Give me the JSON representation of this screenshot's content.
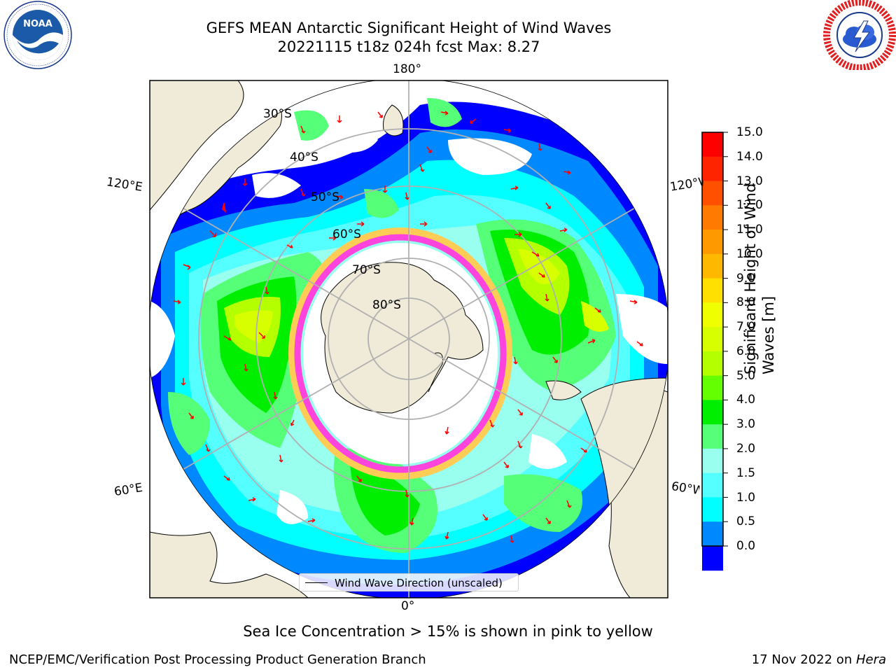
{
  "title": {
    "line1": "GEFS MEAN Antarctic Significant Height of Wind Waves",
    "line2": "20221115 t18z 024h fcst   Max: 8.27"
  },
  "logos": {
    "noaa_text": "NOAA",
    "noaa_ring_text": "NATIONAL OCEANIC AND ATMOSPHERIC ADMINISTRATION · U.S. DEPARTMENT OF COMMERCE",
    "nws_ring_text": "NATIONAL WEATHER SERVICE"
  },
  "map": {
    "projection": "south-polar-stereographic",
    "lon_labels": {
      "top": "180°",
      "bottom": "0°",
      "left_upper": "120°E",
      "left_lower": "60°E",
      "right_upper": "120°W",
      "right_lower": "60°W"
    },
    "lat_labels": [
      "30°S",
      "40°S",
      "50°S",
      "60°S",
      "70°S",
      "80°S"
    ],
    "colors": {
      "land": "#efebd8",
      "ocean_boundary": "#000000",
      "grid": "#b0b0b0",
      "arrow": "#ff0000",
      "ice_pink": "#ff44dd",
      "ice_yellow": "#ffcc55"
    }
  },
  "colorbar": {
    "label": "Significant Height of Wind Waves [m]",
    "label_line1": "Significant Height of Wind",
    "label_line2": "Waves [m]",
    "ticks": [
      "15.0",
      "14.0",
      "13.0",
      "12.0",
      "11.0",
      "10.0",
      "9.0",
      "8.0",
      "7.0",
      "6.0",
      "5.0",
      "4.0",
      "3.0",
      "2.0",
      "1.5",
      "1.0",
      "0.5",
      "0.0"
    ],
    "colors_top_to_bottom": [
      "#ff0000",
      "#ff2400",
      "#ff5000",
      "#ff7a00",
      "#ff9900",
      "#ffb800",
      "#ffe000",
      "#f0ff00",
      "#d8ff00",
      "#b4ff00",
      "#64ff00",
      "#00ee00",
      "#55ff77",
      "#99ffee",
      "#55ffff",
      "#00ffff",
      "#0088ff",
      "#0000ff"
    ]
  },
  "legend": {
    "label": "Wind Wave Direction (unscaled)"
  },
  "note": "Sea Ice Concentration > 15% is shown in pink to yellow",
  "footer": {
    "left": "NCEP/EMC/Verification Post Processing Product Generation Branch",
    "right_prefix": "17 Nov 2022 on ",
    "right_host": "Hera"
  }
}
